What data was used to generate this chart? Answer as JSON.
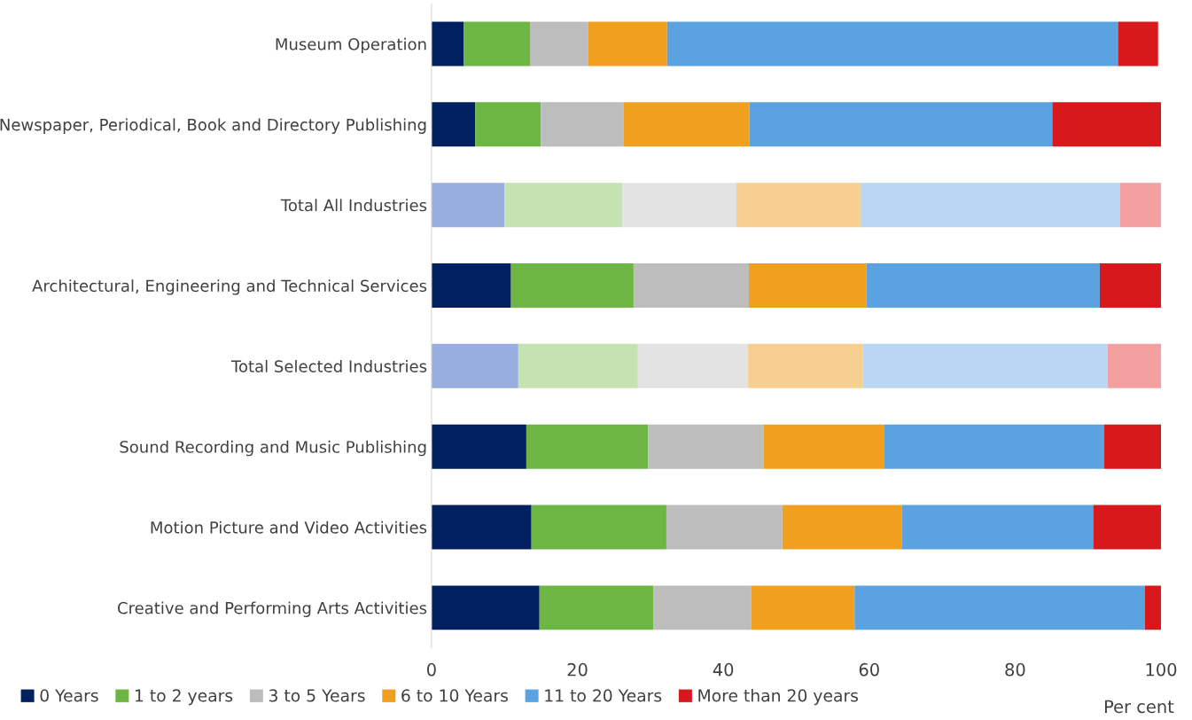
{
  "chart_data": {
    "type": "bar",
    "orientation": "horizontal",
    "stacked": true,
    "xlabel": "Per cent",
    "legend": "bottom",
    "grid": false,
    "categories": [
      "Museum Operation",
      "Newspaper, Periodical, Book and Directory Publishing",
      "Total All Industries",
      "Architectural, Engineering and Technical Services",
      "Total Selected Industries",
      "Sound Recording and Music Publishing",
      "Motion Picture and Video Activities",
      "Creative and Performing Arts Activities"
    ],
    "xlim": [
      0,
      100
    ],
    "xticks": [
      0,
      20,
      40,
      60,
      80,
      100
    ],
    "series": [
      {
        "name": "0 Years",
        "color": "#002060",
        "colors": [
          "#002060",
          "#002060",
          "#97aede",
          "#002060",
          "#97aede",
          "#002060",
          "#002060",
          "#002060"
        ],
        "values": [
          4.4,
          6.0,
          10.0,
          10.9,
          11.9,
          13.0,
          13.7,
          14.8
        ]
      },
      {
        "name": "1 to 2 years",
        "color": "#6db643",
        "colors": [
          "#6db643",
          "#6db643",
          "#c5e3b0",
          "#6db643",
          "#c5e3b0",
          "#6db643",
          "#6db643",
          "#6db643"
        ],
        "values": [
          9.1,
          9.0,
          16.2,
          16.8,
          16.4,
          16.7,
          18.5,
          15.6
        ]
      },
      {
        "name": "3 to 5 Years",
        "color": "#bdbdbd",
        "colors": [
          "#bdbdbd",
          "#bdbdbd",
          "#e3e3e3",
          "#bdbdbd",
          "#e3e3e3",
          "#bdbdbd",
          "#bdbdbd",
          "#bdbdbd"
        ],
        "values": [
          8.0,
          11.3,
          15.6,
          15.8,
          15.1,
          15.8,
          15.9,
          13.4
        ]
      },
      {
        "name": "6 to 10 Years",
        "color": "#f0a01e",
        "colors": [
          "#f0a01e",
          "#f0a01e",
          "#f7cf90",
          "#f0a01e",
          "#f7cf90",
          "#f0a01e",
          "#f0a01e",
          "#f0a01e"
        ],
        "values": [
          10.8,
          17.3,
          17.0,
          16.1,
          15.7,
          16.5,
          16.4,
          14.2
        ]
      },
      {
        "name": "11 to 20 Years",
        "color": "#5ba3e0",
        "colors": [
          "#5ba3e0",
          "#5ba3e0",
          "#b9d7f2",
          "#5ba3e0",
          "#b9d7f2",
          "#5ba3e0",
          "#5ba3e0",
          "#5ba3e0"
        ],
        "values": [
          61.8,
          41.5,
          35.6,
          32.0,
          33.6,
          30.2,
          26.2,
          39.8
        ]
      },
      {
        "name": "More than 20 years",
        "color": "#d7191c",
        "colors": [
          "#d7191c",
          "#d7191c",
          "#f4a0a0",
          "#d7191c",
          "#f4a0a0",
          "#d7191c",
          "#d7191c",
          "#d7191c"
        ],
        "values": [
          5.5,
          14.9,
          5.7,
          8.5,
          7.4,
          7.8,
          9.4,
          2.3
        ]
      }
    ]
  }
}
